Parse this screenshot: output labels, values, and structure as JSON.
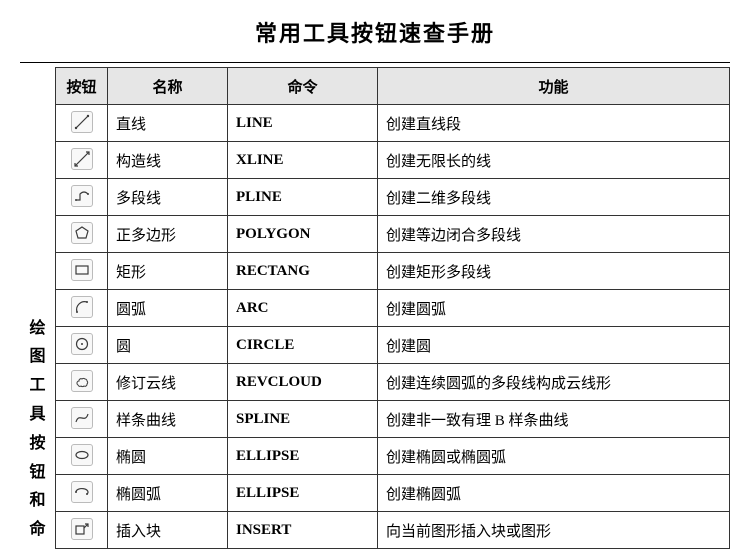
{
  "title": "常用工具按钮速查手册",
  "side_label": [
    "绘",
    "图",
    "工",
    "具",
    "按",
    "钮",
    "和",
    "命"
  ],
  "columns": [
    "按钮",
    "名称",
    "命令",
    "功能"
  ],
  "rows": [
    {
      "icon": "line",
      "name": "直线",
      "cmd": "LINE",
      "desc": "创建直线段"
    },
    {
      "icon": "xline",
      "name": "构造线",
      "cmd": "XLINE",
      "desc": "创建无限长的线"
    },
    {
      "icon": "pline",
      "name": "多段线",
      "cmd": "PLINE",
      "desc": "创建二维多段线"
    },
    {
      "icon": "polygon",
      "name": "正多边形",
      "cmd": "POLYGON",
      "desc": "创建等边闭合多段线"
    },
    {
      "icon": "rectang",
      "name": "矩形",
      "cmd": "RECTANG",
      "desc": "创建矩形多段线"
    },
    {
      "icon": "arc",
      "name": "圆弧",
      "cmd": "ARC",
      "desc": "创建圆弧"
    },
    {
      "icon": "circle",
      "name": "圆",
      "cmd": "CIRCLE",
      "desc": "创建圆"
    },
    {
      "icon": "revcloud",
      "name": "修订云线",
      "cmd": "REVCLOUD",
      "desc": "创建连续圆弧的多段线构成云线形"
    },
    {
      "icon": "spline",
      "name": "样条曲线",
      "cmd": "SPLINE",
      "desc": "创建非一致有理 B 样条曲线"
    },
    {
      "icon": "ellipse",
      "name": "椭圆",
      "cmd": "ELLIPSE",
      "desc": "创建椭圆或椭圆弧"
    },
    {
      "icon": "ellipsearc",
      "name": "椭圆弧",
      "cmd": "ELLIPSE",
      "desc": "创建椭圆弧"
    },
    {
      "icon": "insert",
      "name": "插入块",
      "cmd": "INSERT",
      "desc": "向当前图形插入块或图形"
    }
  ],
  "icon_stroke": "#3a3a3a"
}
